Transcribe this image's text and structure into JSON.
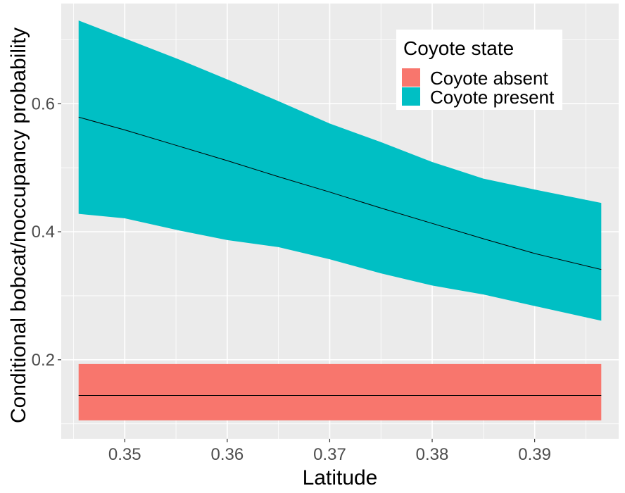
{
  "chart_data": {
    "type": "area",
    "xlabel": "Latitude",
    "ylabel": "Conditional bobcat/noccupancy probability",
    "xlim": [
      0.3438,
      0.3982
    ],
    "ylim": [
      0.0766,
      0.7565
    ],
    "x_ticks": [
      {
        "value": 0.35,
        "label": "0.35"
      },
      {
        "value": 0.36,
        "label": "0.36"
      },
      {
        "value": 0.37,
        "label": "0.37"
      },
      {
        "value": 0.38,
        "label": "0.38"
      },
      {
        "value": 0.39,
        "label": "0.39"
      }
    ],
    "y_ticks": [
      {
        "value": 0.2,
        "label": "0.2"
      },
      {
        "value": 0.4,
        "label": "0.4"
      },
      {
        "value": 0.6,
        "label": "0.6"
      }
    ],
    "grid": true,
    "legend": {
      "title": "Coyote state",
      "position": "top-right",
      "entries": [
        {
          "label": "Coyote absent",
          "color": "#F8766D"
        },
        {
          "label": "Coyote present",
          "color": "#00BFC4"
        }
      ]
    },
    "series": [
      {
        "name": "Coyote absent",
        "color": "#F8766D",
        "x": [
          0.3455,
          0.3965
        ],
        "mean": [
          0.1443,
          0.1443
        ],
        "lower": [
          0.1053,
          0.1053
        ],
        "upper": [
          0.1933,
          0.1933
        ]
      },
      {
        "name": "Coyote present",
        "color": "#00BFC4",
        "x": [
          0.3455,
          0.35,
          0.355,
          0.36,
          0.365,
          0.37,
          0.375,
          0.38,
          0.385,
          0.39,
          0.3965
        ],
        "mean": [
          0.579,
          0.559,
          0.535,
          0.511,
          0.486,
          0.462,
          0.437,
          0.413,
          0.389,
          0.366,
          0.341
        ],
        "lower": [
          0.428,
          0.421,
          0.403,
          0.387,
          0.376,
          0.357,
          0.335,
          0.316,
          0.302,
          0.284,
          0.261
        ],
        "upper": [
          0.73,
          0.702,
          0.671,
          0.638,
          0.604,
          0.569,
          0.54,
          0.509,
          0.483,
          0.466,
          0.445
        ]
      }
    ]
  }
}
